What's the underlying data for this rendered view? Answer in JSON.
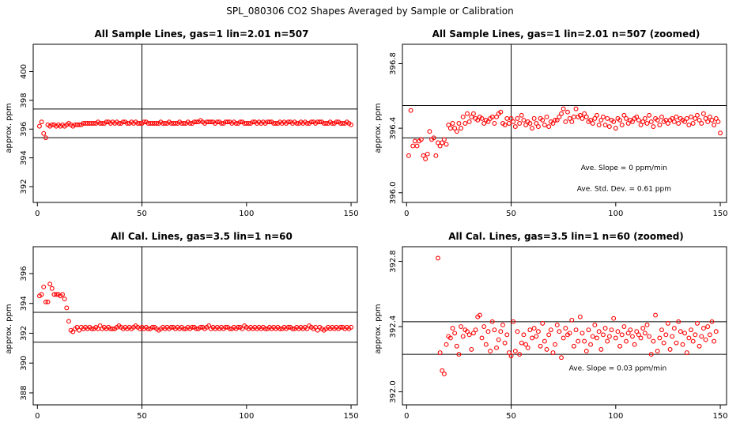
{
  "figure": {
    "title": "SPL_080306  CO2 Shapes Averaged by Sample or Calibration"
  },
  "chart_data": [
    {
      "type": "scatter",
      "title": "All Sample Lines, gas=1 lin=2.01 n=507",
      "ylabel": "approx. ppm",
      "xlim": [
        -2,
        153
      ],
      "ylim": [
        390.9,
        401.9
      ],
      "xticks": [
        0,
        50,
        100,
        150
      ],
      "yticks": [
        392,
        394,
        396,
        398,
        400
      ],
      "hlines": [
        397.4,
        395.4
      ],
      "vlines": [
        50
      ],
      "point_color": "#ff0000",
      "annotations": [],
      "x_start": 1,
      "y": [
        396.2,
        396.5,
        395.7,
        395.4,
        396.3,
        396.2,
        396.3,
        396.3,
        396.2,
        396.3,
        396.2,
        396.3,
        396.2,
        396.3,
        396.4,
        396.3,
        396.2,
        396.3,
        396.3,
        396.3,
        396.3,
        396.4,
        396.4,
        396.4,
        396.4,
        396.4,
        396.4,
        396.4,
        396.5,
        396.4,
        396.4,
        396.4,
        396.5,
        396.5,
        396.4,
        396.5,
        396.4,
        396.5,
        396.4,
        396.4,
        396.5,
        396.5,
        396.4,
        396.4,
        396.5,
        396.4,
        396.5,
        396.4,
        396.4,
        396.4,
        396.5,
        396.5,
        396.4,
        396.4,
        396.4,
        396.4,
        396.4,
        396.4,
        396.5,
        396.4,
        396.4,
        396.4,
        396.5,
        396.4,
        396.4,
        396.4,
        396.4,
        396.5,
        396.4,
        396.4,
        396.4,
        396.5,
        396.4,
        396.4,
        396.5,
        396.5,
        396.5,
        396.6,
        396.5,
        396.4,
        396.5,
        396.5,
        396.5,
        396.5,
        396.4,
        396.5,
        396.5,
        396.4,
        396.4,
        396.5,
        396.5,
        396.5,
        396.4,
        396.5,
        396.4,
        396.4,
        396.5,
        396.5,
        396.4,
        396.4,
        396.4,
        396.4,
        396.5,
        396.5,
        396.4,
        396.5,
        396.4,
        396.5,
        396.4,
        396.5,
        396.5,
        396.5,
        396.4,
        396.4,
        396.4,
        396.5,
        396.4,
        396.5,
        396.4,
        396.5,
        396.5,
        396.4,
        396.5,
        396.4,
        396.4,
        396.5,
        396.4,
        396.5,
        396.4,
        396.4,
        396.5,
        396.5,
        396.4,
        396.5,
        396.5,
        396.5,
        396.4,
        396.4,
        396.4,
        396.5,
        396.4,
        396.4,
        396.5,
        396.5,
        396.4,
        396.4,
        396.4,
        396.5,
        396.4,
        396.3
      ]
    },
    {
      "type": "scatter",
      "title": "All Sample Lines, gas=1 lin=2.01 n=507 (zoomed)",
      "ylabel": "approx. ppm",
      "xlim": [
        -2,
        153
      ],
      "ylim": [
        395.94,
        396.92
      ],
      "xticks": [
        0,
        50,
        100,
        150
      ],
      "yticks": [
        396.0,
        396.4,
        396.8
      ],
      "hlines": [
        396.54,
        396.34
      ],
      "vlines": [
        50
      ],
      "point_color": "#ff0000",
      "annotations": [
        {
          "text": "Ave. Slope =  0  ppm/min",
          "x": 104,
          "y": 396.14
        },
        {
          "text": "Ave. Std. Dev. =  0.61  ppm",
          "x": 104,
          "y": 396.01
        }
      ],
      "x_start": 1,
      "y": [
        396.23,
        396.51,
        396.29,
        396.32,
        396.29,
        396.32,
        396.33,
        396.23,
        396.21,
        396.24,
        396.38,
        396.33,
        396.34,
        396.23,
        396.31,
        396.29,
        396.31,
        396.33,
        396.3,
        396.42,
        396.4,
        396.43,
        396.4,
        396.38,
        396.43,
        396.4,
        396.47,
        396.43,
        396.49,
        396.44,
        396.47,
        396.49,
        396.46,
        396.45,
        396.47,
        396.46,
        396.43,
        396.45,
        396.44,
        396.46,
        396.47,
        396.43,
        396.47,
        396.49,
        396.5,
        396.43,
        396.42,
        396.46,
        396.43,
        396.46,
        396.44,
        396.41,
        396.46,
        396.43,
        396.48,
        396.45,
        396.42,
        396.44,
        396.43,
        396.4,
        396.46,
        396.43,
        396.41,
        396.46,
        396.45,
        396.42,
        396.47,
        396.41,
        396.44,
        396.43,
        396.45,
        396.45,
        396.47,
        396.49,
        396.52,
        396.44,
        396.5,
        396.46,
        396.44,
        396.47,
        396.52,
        396.47,
        396.48,
        396.46,
        396.49,
        396.47,
        396.44,
        396.45,
        396.43,
        396.46,
        396.48,
        396.42,
        396.45,
        396.47,
        396.42,
        396.46,
        396.41,
        396.45,
        396.44,
        396.4,
        396.46,
        396.45,
        396.42,
        396.48,
        396.46,
        396.43,
        396.45,
        396.44,
        396.46,
        396.47,
        396.45,
        396.42,
        396.44,
        396.46,
        396.43,
        396.48,
        396.44,
        396.41,
        396.46,
        396.45,
        396.42,
        396.47,
        396.44,
        396.45,
        396.43,
        396.45,
        396.46,
        396.44,
        396.47,
        396.43,
        396.46,
        396.45,
        396.44,
        396.46,
        396.42,
        396.47,
        396.43,
        396.46,
        396.48,
        396.45,
        396.43,
        396.49,
        396.46,
        396.44,
        396.47,
        396.45,
        396.42,
        396.46,
        396.44,
        396.37
      ]
    },
    {
      "type": "scatter",
      "title": "All Cal. Lines, gas=3.5 lin=1 n=60",
      "ylabel": "approx. ppm",
      "xlim": [
        -2,
        153
      ],
      "ylim": [
        387.2,
        397.8
      ],
      "xticks": [
        0,
        50,
        100,
        150
      ],
      "yticks": [
        388,
        390,
        392,
        394,
        396
      ],
      "hlines": [
        393.4,
        391.4
      ],
      "vlines": [
        50
      ],
      "point_color": "#ff0000",
      "annotations": [],
      "x_start": 1,
      "y": [
        394.5,
        394.6,
        395.1,
        394.1,
        394.1,
        395.3,
        395.0,
        394.6,
        394.6,
        394.6,
        394.5,
        394.6,
        394.3,
        393.7,
        392.8,
        392.2,
        392.1,
        392.3,
        392.4,
        392.2,
        392.4,
        392.3,
        392.4,
        392.3,
        392.4,
        392.3,
        392.3,
        392.4,
        392.3,
        392.5,
        392.3,
        392.4,
        392.3,
        392.4,
        392.3,
        392.3,
        392.3,
        392.4,
        392.5,
        392.4,
        392.3,
        392.4,
        392.3,
        392.4,
        392.3,
        392.4,
        392.5,
        392.4,
        392.3,
        392.4,
        392.3,
        392.4,
        392.3,
        392.3,
        392.4,
        392.4,
        392.3,
        392.2,
        392.3,
        392.4,
        392.3,
        392.4,
        392.3,
        392.4,
        392.4,
        392.3,
        392.4,
        392.3,
        392.4,
        392.3,
        392.3,
        392.4,
        392.3,
        392.4,
        392.4,
        392.3,
        392.3,
        392.4,
        392.4,
        392.3,
        392.4,
        392.5,
        392.3,
        392.4,
        392.3,
        392.4,
        392.3,
        392.4,
        392.3,
        392.4,
        392.4,
        392.3,
        392.3,
        392.4,
        392.3,
        392.4,
        392.4,
        392.3,
        392.5,
        392.4,
        392.3,
        392.4,
        392.3,
        392.4,
        392.3,
        392.4,
        392.3,
        392.4,
        392.3,
        392.3,
        392.4,
        392.3,
        392.4,
        392.3,
        392.4,
        392.3,
        392.3,
        392.4,
        392.3,
        392.4,
        392.4,
        392.3,
        392.3,
        392.4,
        392.3,
        392.4,
        392.3,
        392.4,
        392.3,
        392.5,
        392.4,
        392.3,
        392.4,
        392.2,
        392.4,
        392.3,
        392.2,
        392.3,
        392.4,
        392.3,
        392.4,
        392.3,
        392.4,
        392.3,
        392.4,
        392.4,
        392.3,
        392.4,
        392.3,
        392.4
      ]
    },
    {
      "type": "scatter",
      "title": "All Cal. Lines, gas=3.5 lin=1 n=60 (zoomed)",
      "ylabel": "approx. ppm",
      "xlim": [
        -2,
        153
      ],
      "ylim": [
        391.92,
        392.89
      ],
      "xticks": [
        0,
        50,
        100,
        150
      ],
      "yticks": [
        392.0,
        392.4,
        392.8
      ],
      "hlines": [
        392.43,
        392.23
      ],
      "vlines": [
        50
      ],
      "point_color": "#ff0000",
      "annotations": [
        {
          "text": "Ave. Slope =  0.03  ppm/min",
          "x": 101,
          "y": 392.13
        }
      ],
      "x_start": 15,
      "y": [
        392.82,
        392.24,
        392.13,
        392.11,
        392.29,
        392.34,
        392.33,
        392.39,
        392.36,
        392.28,
        392.23,
        392.4,
        392.34,
        392.38,
        392.37,
        392.35,
        392.26,
        392.36,
        392.38,
        392.46,
        392.47,
        392.33,
        392.4,
        392.29,
        392.37,
        392.25,
        392.43,
        392.38,
        392.27,
        392.32,
        392.37,
        392.41,
        392.3,
        392.35,
        392.24,
        392.22,
        392.43,
        392.25,
        392.37,
        392.23,
        392.3,
        392.35,
        392.29,
        392.27,
        392.38,
        392.33,
        392.39,
        392.34,
        392.37,
        392.28,
        392.42,
        392.31,
        392.26,
        392.35,
        392.38,
        392.24,
        392.29,
        392.41,
        392.37,
        392.21,
        392.33,
        392.39,
        392.35,
        392.36,
        392.44,
        392.28,
        392.38,
        392.31,
        392.46,
        392.36,
        392.31,
        392.25,
        392.38,
        392.29,
        392.34,
        392.41,
        392.33,
        392.37,
        392.26,
        392.35,
        392.39,
        392.31,
        392.34,
        392.38,
        392.45,
        392.33,
        392.37,
        392.28,
        392.35,
        392.4,
        392.31,
        392.36,
        392.38,
        392.34,
        392.29,
        392.37,
        392.35,
        392.33,
        392.39,
        392.36,
        392.41,
        392.34,
        392.23,
        392.31,
        392.47,
        392.25,
        392.33,
        392.38,
        392.3,
        392.35,
        392.42,
        392.26,
        392.34,
        392.39,
        392.3,
        392.43,
        392.37,
        392.29,
        392.36,
        392.24,
        392.33,
        392.38,
        392.31,
        392.35,
        392.42,
        392.28,
        392.34,
        392.39,
        392.32,
        392.4,
        392.35,
        392.43,
        392.31,
        392.37
      ]
    }
  ]
}
